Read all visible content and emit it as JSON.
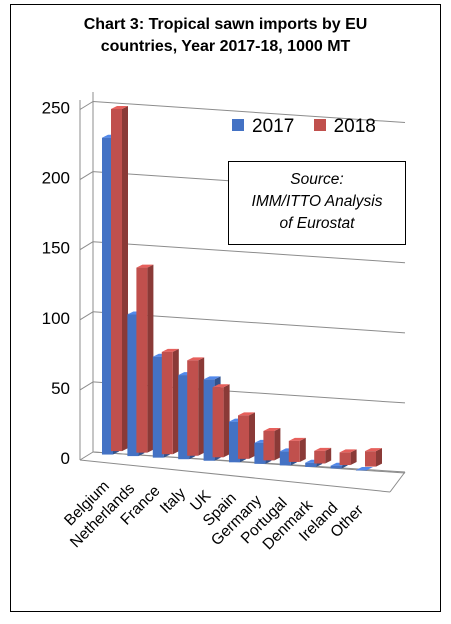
{
  "chart_data": {
    "type": "bar",
    "title_lines": [
      "Chart 3: Tropical sawn imports by EU",
      "countries, Year 2017-18, 1000 MT"
    ],
    "categories": [
      "Belgium",
      "Netherlands",
      "France",
      "Italy",
      "UK",
      "Spain",
      "Germany",
      "Portugal",
      "Denmark",
      "Ireland",
      "Other"
    ],
    "series": [
      {
        "name": "2017",
        "color": "#4472C4",
        "values": [
          226,
          101,
          72,
          60,
          58,
          29,
          15,
          10,
          3,
          2,
          0
        ]
      },
      {
        "name": "2018",
        "color": "#C0504D",
        "values": [
          244,
          132,
          73,
          68,
          50,
          31,
          21,
          15,
          9,
          9,
          11
        ]
      }
    ],
    "ylim": [
      0,
      250
    ],
    "yticks": [
      0,
      50,
      100,
      150,
      200,
      250
    ],
    "grid": true,
    "legend_position": "top-right",
    "annotation_lines": [
      "Source:",
      "IMM/ITTO Analysis",
      "of Eurostat"
    ]
  }
}
